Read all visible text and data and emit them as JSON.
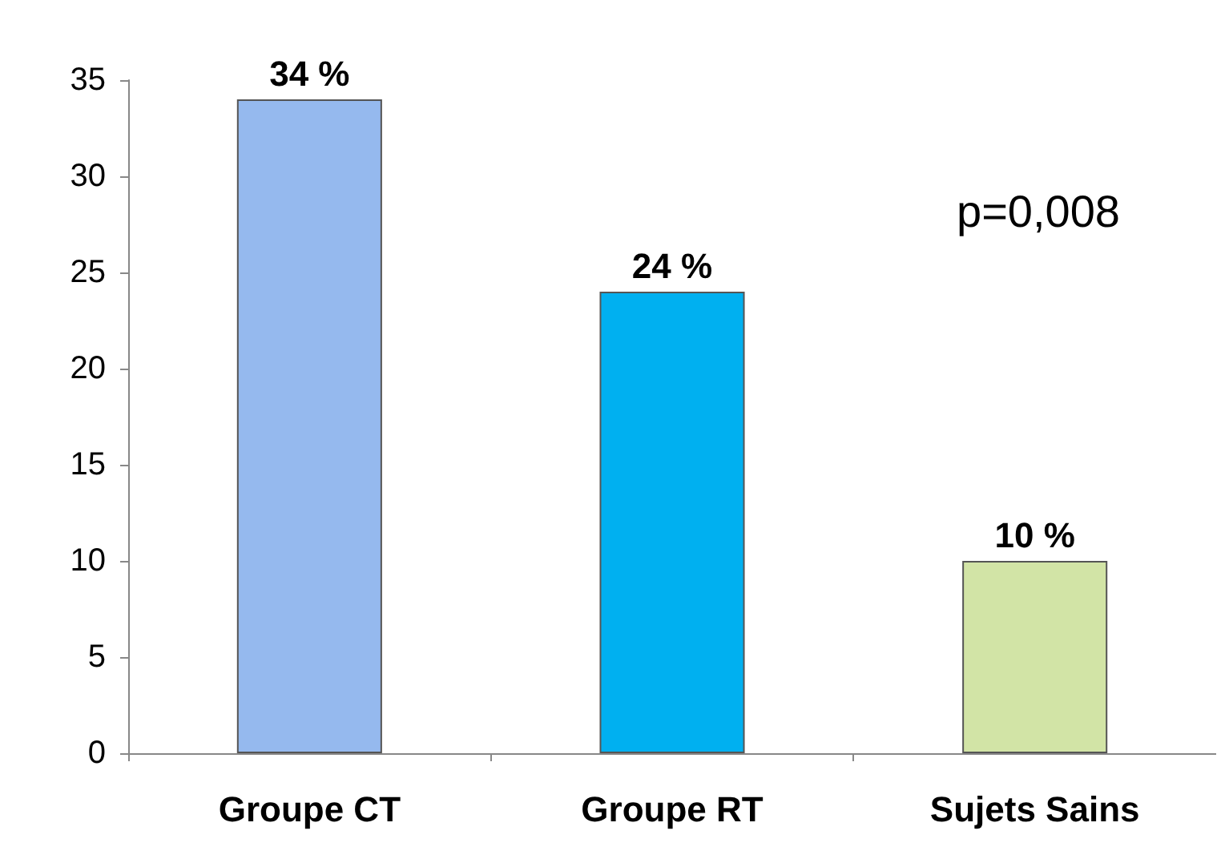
{
  "chart_data": {
    "type": "bar",
    "categories": [
      "Groupe CT",
      "Groupe RT",
      "Sujets Sains"
    ],
    "values": [
      34,
      24,
      10
    ],
    "colors": [
      "#95b9ee",
      "#00b0f0",
      "#d2e4a6"
    ],
    "value_labels": [
      "34 %",
      "24 %",
      "10 %"
    ],
    "ylim": [
      0,
      35
    ],
    "yticks": [
      0,
      5,
      10,
      15,
      20,
      25,
      30,
      35
    ],
    "grid": false,
    "annotations": [
      "p=0,008"
    ]
  }
}
